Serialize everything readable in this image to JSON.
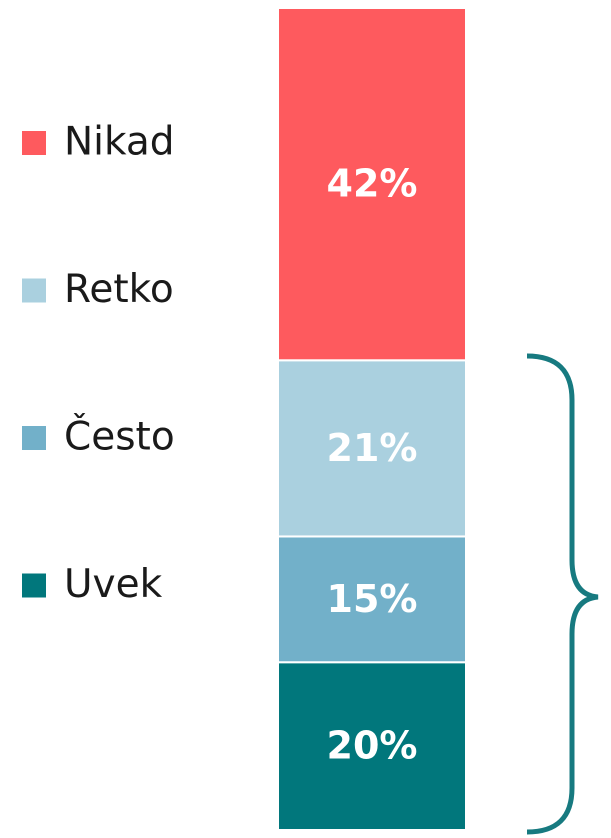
{
  "chart_data": {
    "type": "stacked-bar",
    "series": [
      {
        "name": "Nikad",
        "color": "#fe5a5e",
        "values": [
          42
        ],
        "value_labels": [
          "42%"
        ]
      },
      {
        "name": "Retko",
        "color": "#aad0df",
        "values": [
          21
        ],
        "value_labels": [
          "21%"
        ]
      },
      {
        "name": "Često",
        "color": "#72b0c9",
        "values": [
          15
        ],
        "value_labels": [
          "15%"
        ]
      },
      {
        "name": "Uvek",
        "color": "#01777c",
        "values": [
          20
        ],
        "value_labels": [
          "20%"
        ]
      }
    ]
  }
}
